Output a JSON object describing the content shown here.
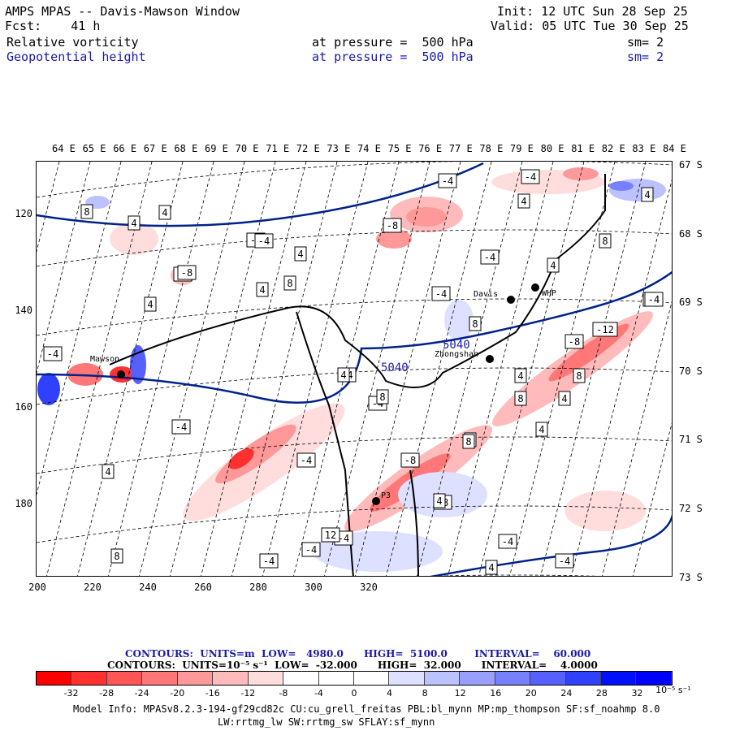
{
  "header": {
    "title": "AMPS MPAS -- Davis-Mawson Window",
    "fcst_label": "Fcst:",
    "fcst_value": "41 h",
    "init": "Init: 12 UTC Sun 28 Sep 25",
    "valid": "Valid: 05 UTC Tue 30 Sep 25",
    "field1": {
      "name": "Relative vorticity",
      "pressure": "at pressure =  500 hPa",
      "sm": "sm= 2"
    },
    "field2": {
      "name": "Geopotential height",
      "pressure": "at pressure =  500 hPa",
      "sm": "sm= 2"
    }
  },
  "axes": {
    "top_lon": [
      "64 E",
      "65 E",
      "66 E",
      "67 E",
      "68 E",
      "69 E",
      "70 E",
      "71 E",
      "72 E",
      "73 E",
      "74 E",
      "75 E",
      "76 E",
      "77 E",
      "78 E",
      "79 E",
      "80 E",
      "81 E",
      "82 E",
      "83 E",
      "84 E"
    ],
    "right_lat": [
      "67 S",
      "68 S",
      "69 S",
      "70 S",
      "71 S",
      "72 S",
      "73 S"
    ],
    "left_grid": [
      "120",
      "140",
      "160",
      "180"
    ],
    "bottom_grid": [
      "200",
      "220",
      "240",
      "260",
      "280",
      "300",
      "320"
    ]
  },
  "stations": [
    {
      "name": "Mawson"
    },
    {
      "name": "Davis"
    },
    {
      "name": "WHP"
    },
    {
      "name": "Zhongshan"
    },
    {
      "name": "P3"
    }
  ],
  "height_labels": [
    "5040",
    "5040"
  ],
  "vort_labels": [
    "-4",
    "8",
    "4",
    "4",
    "-4",
    "-4",
    "8",
    "4",
    "-4",
    "-8",
    "-4",
    "4",
    "4",
    "-8",
    "-4",
    "-4",
    "4",
    "4",
    "8",
    "4",
    "-4",
    "-4",
    "8",
    "8",
    "-4",
    "-12",
    "-8",
    "4",
    "8",
    "8",
    "-4",
    "4",
    "-4",
    "4",
    "8",
    "-4",
    "-4",
    "-4",
    "4",
    "8",
    "4",
    "-8",
    "12",
    "-4",
    "-8",
    "-4",
    "4",
    "4",
    "4",
    "4",
    "8"
  ],
  "legend": {
    "line1": "CONTOURS:  UNITS=m  LOW=   4980.0      HIGH=  5100.0        INTERVAL=    60.000",
    "line2": "CONTOURS:  UNITS=10⁻⁵ s⁻¹  LOW=  -32.000      HIGH=  32.000      INTERVAL=    4.0000"
  },
  "colorbar": {
    "labels": [
      "-32",
      "-28",
      "-24",
      "-20",
      "-16",
      "-12",
      "-8",
      "-4",
      "0",
      "4",
      "8",
      "12",
      "16",
      "20",
      "24",
      "28",
      "32"
    ],
    "units": "10⁻⁵ s⁻¹",
    "colors": [
      "#ff0000",
      "#ff3030",
      "#ff5555",
      "#ff7777",
      "#ff9999",
      "#ffbbbb",
      "#ffdddd",
      "#ffffff",
      "#ffffff",
      "#ffffff",
      "#dde0ff",
      "#bbc2ff",
      "#999fff",
      "#7780ff",
      "#5560ff",
      "#3040ff",
      "#0010ff",
      "#0000ff"
    ]
  },
  "model_info": {
    "line1": "Model Info: MPASv8.2.3-194-gf29cd82c CU:cu_grell_freitas PBL:bl_mynn MP:mp_thompson SF:sf_noahmp 8.0",
    "line2": "LW:rrtmg_lw SW:rrtmg_sw SFLAY:sf_mynn"
  }
}
